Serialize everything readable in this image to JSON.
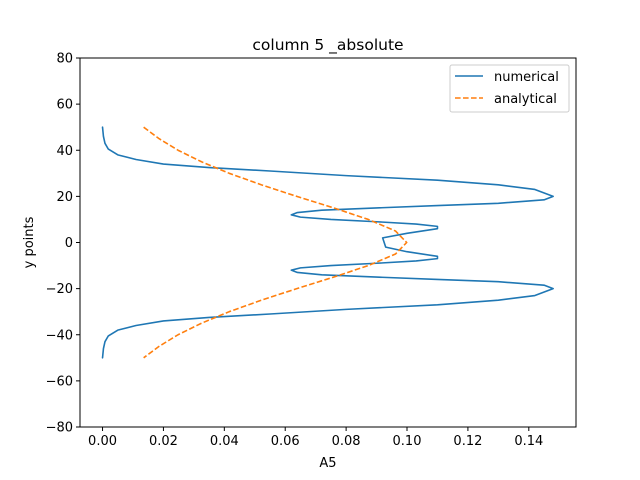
{
  "chart_data": {
    "type": "line",
    "title": "column 5 _absolute",
    "xlabel": "A5",
    "ylabel": "y points",
    "xlim": [
      -0.0074,
      0.1555
    ],
    "ylim": [
      -80,
      80
    ],
    "xticks": [
      0.0,
      0.02,
      0.04,
      0.06,
      0.08,
      0.1,
      0.12,
      0.14
    ],
    "xtick_labels": [
      "0.00",
      "0.02",
      "0.04",
      "0.06",
      "0.08",
      "0.10",
      "0.12",
      "0.14"
    ],
    "yticks": [
      -80,
      -60,
      -40,
      -20,
      0,
      20,
      40,
      60,
      80
    ],
    "ytick_labels": [
      "−80",
      "−60",
      "−40",
      "−20",
      "0",
      "20",
      "40",
      "60",
      "80"
    ],
    "grid": false,
    "legend_position": "top-right",
    "series": [
      {
        "name": "numerical",
        "color": "#1f77b4",
        "style": "solid",
        "x": [
          0.0,
          0.0003,
          0.0008,
          0.0019,
          0.005,
          0.011,
          0.02,
          0.035,
          0.055,
          0.08,
          0.11,
          0.13,
          0.142,
          0.148,
          0.145,
          0.13,
          0.11,
          0.09,
          0.072,
          0.064,
          0.062,
          0.065,
          0.075,
          0.09,
          0.103,
          0.11,
          0.11,
          0.1,
          0.092,
          0.093,
          0.1,
          0.11,
          0.11,
          0.103,
          0.09,
          0.075,
          0.065,
          0.062,
          0.064,
          0.072,
          0.09,
          0.11,
          0.13,
          0.145,
          0.148,
          0.142,
          0.13,
          0.11,
          0.08,
          0.055,
          0.035,
          0.02,
          0.011,
          0.005,
          0.0019,
          0.0008,
          0.0003,
          0.0
        ],
        "y": [
          50,
          46,
          43,
          40.5,
          38,
          36,
          34,
          32.5,
          31,
          29,
          27,
          25,
          23,
          20,
          18.5,
          17,
          16,
          15,
          14,
          13,
          12,
          11,
          10,
          9,
          8,
          7,
          6,
          4,
          2,
          -2,
          -4,
          -6,
          -7,
          -8,
          -9,
          -10,
          -11,
          -12,
          -13,
          -14,
          -15,
          -16,
          -17,
          -18.5,
          -20,
          -23,
          -25,
          -27,
          -29,
          -31,
          -32.5,
          -34,
          -36,
          -38,
          -40.5,
          -43,
          -46,
          -50
        ]
      },
      {
        "name": "analytical",
        "color": "#ff7f0e",
        "style": "dashed",
        "x": [
          0.0135,
          0.0186,
          0.0248,
          0.0325,
          0.0416,
          0.0522,
          0.0638,
          0.0759,
          0.0873,
          0.0962,
          0.0999,
          0.0962,
          0.0873,
          0.0759,
          0.0638,
          0.0522,
          0.0416,
          0.0325,
          0.0248,
          0.0186,
          0.0135
        ],
        "y": [
          50,
          45,
          40,
          35,
          30,
          25,
          20,
          15,
          10,
          5,
          0,
          -5,
          -10,
          -15,
          -20,
          -25,
          -30,
          -35,
          -40,
          -45,
          -50
        ]
      }
    ]
  }
}
